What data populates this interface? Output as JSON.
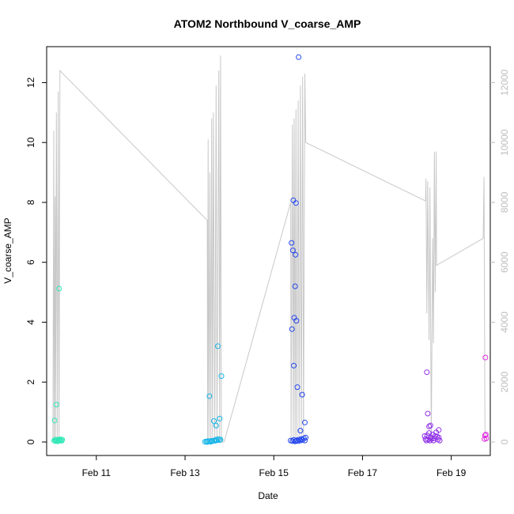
{
  "chart_data": {
    "type": "scatter",
    "title": "ATOM2 Northbound V_coarse_AMP",
    "xlabel": "Date",
    "ylabel": "V_coarse_AMP",
    "x_axis": {
      "range_days": [
        9.88,
        19.88
      ],
      "ticks": [
        {
          "day": 11,
          "label": "Feb 11"
        },
        {
          "day": 13,
          "label": "Feb 13"
        },
        {
          "day": 15,
          "label": "Feb 15"
        },
        {
          "day": 17,
          "label": "Feb 17"
        },
        {
          "day": 19,
          "label": "Feb 19"
        }
      ]
    },
    "y_axis_left": {
      "range": [
        -0.45,
        13.2
      ],
      "ticks": [
        0,
        2,
        4,
        6,
        8,
        10,
        12
      ]
    },
    "y_axis_right": {
      "range": [
        -450,
        13200
      ],
      "ticks": [
        0,
        2000,
        4000,
        6000,
        8000,
        10000,
        12000
      ],
      "color": "#bdbdbd"
    },
    "line_color": "#c8c8c8",
    "series": [
      {
        "color": "#2ee8b6",
        "points": [
          [
            10.05,
            0.05
          ],
          [
            10.07,
            0.03
          ],
          [
            10.08,
            0.08
          ],
          [
            10.1,
            0.04
          ],
          [
            10.12,
            0.06
          ],
          [
            10.13,
            0.02
          ],
          [
            10.15,
            0.07
          ],
          [
            10.17,
            0.05
          ],
          [
            10.18,
            0.09
          ],
          [
            10.2,
            0.06
          ],
          [
            10.22,
            0.04
          ],
          [
            10.23,
            0.08
          ],
          [
            10.06,
            0.72
          ],
          [
            10.1,
            1.25
          ],
          [
            10.16,
            5.12
          ]
        ]
      },
      {
        "color": "#17b6e8",
        "points": [
          [
            13.45,
            0.01
          ],
          [
            13.48,
            0.02
          ],
          [
            13.5,
            0.0
          ],
          [
            13.52,
            0.03
          ],
          [
            13.55,
            0.02
          ],
          [
            13.58,
            0.01
          ],
          [
            13.6,
            0.04
          ],
          [
            13.62,
            0.03
          ],
          [
            13.65,
            0.05
          ],
          [
            13.68,
            0.04
          ],
          [
            13.7,
            0.08
          ],
          [
            13.72,
            0.06
          ],
          [
            13.75,
            0.1
          ],
          [
            13.78,
            0.06
          ],
          [
            13.8,
            0.08
          ],
          [
            13.55,
            1.53
          ],
          [
            13.65,
            0.7
          ],
          [
            13.7,
            0.55
          ],
          [
            13.74,
            3.2
          ],
          [
            13.78,
            0.78
          ],
          [
            13.82,
            2.2
          ]
        ]
      },
      {
        "color": "#2446ee",
        "points": [
          [
            15.38,
            0.05
          ],
          [
            15.42,
            0.03
          ],
          [
            15.45,
            0.07
          ],
          [
            15.48,
            0.02
          ],
          [
            15.5,
            0.04
          ],
          [
            15.52,
            0.06
          ],
          [
            15.55,
            0.03
          ],
          [
            15.57,
            0.08
          ],
          [
            15.6,
            0.05
          ],
          [
            15.62,
            0.1
          ],
          [
            15.65,
            0.07
          ],
          [
            15.68,
            0.12
          ],
          [
            15.7,
            0.05
          ],
          [
            15.72,
            0.15
          ],
          [
            15.4,
            6.65
          ],
          [
            15.41,
            3.77
          ],
          [
            15.43,
            6.4
          ],
          [
            15.44,
            8.07
          ],
          [
            15.45,
            2.55
          ],
          [
            15.46,
            4.15
          ],
          [
            15.48,
            5.2
          ],
          [
            15.49,
            6.25
          ],
          [
            15.5,
            7.98
          ],
          [
            15.51,
            4.05
          ],
          [
            15.53,
            1.83
          ],
          [
            15.56,
            12.85
          ],
          [
            15.6,
            0.38
          ],
          [
            15.64,
            1.58
          ],
          [
            15.7,
            0.65
          ]
        ]
      },
      {
        "color": "#8e2ee8",
        "points": [
          [
            18.4,
            0.2
          ],
          [
            18.42,
            0.1
          ],
          [
            18.44,
            0.05
          ],
          [
            18.46,
            0.22
          ],
          [
            18.48,
            0.08
          ],
          [
            18.5,
            0.3
          ],
          [
            18.52,
            0.05
          ],
          [
            18.54,
            0.15
          ],
          [
            18.56,
            0.1
          ],
          [
            18.58,
            0.25
          ],
          [
            18.6,
            0.05
          ],
          [
            18.62,
            0.12
          ],
          [
            18.64,
            0.2
          ],
          [
            18.66,
            0.32
          ],
          [
            18.68,
            0.18
          ],
          [
            18.7,
            0.08
          ],
          [
            18.72,
            0.15
          ],
          [
            18.74,
            0.05
          ],
          [
            18.45,
            2.33
          ],
          [
            18.47,
            0.95
          ],
          [
            18.5,
            0.52
          ],
          [
            18.53,
            0.55
          ],
          [
            18.72,
            0.4
          ]
        ]
      },
      {
        "color": "#e02ee0",
        "points": [
          [
            19.75,
            0.1
          ],
          [
            19.76,
            0.22
          ],
          [
            19.77,
            2.82
          ],
          [
            19.78,
            0.25
          ],
          [
            19.79,
            0.12
          ]
        ]
      }
    ],
    "right_axis_line": [
      [
        10.02,
        0
      ],
      [
        10.04,
        10400
      ],
      [
        10.05,
        0
      ],
      [
        10.07,
        8200
      ],
      [
        10.08,
        0
      ],
      [
        10.1,
        11000
      ],
      [
        10.12,
        0
      ],
      [
        10.14,
        11700
      ],
      [
        10.16,
        0
      ],
      [
        10.18,
        12400
      ],
      [
        13.5,
        7400
      ],
      [
        13.51,
        0
      ],
      [
        13.52,
        10100
      ],
      [
        13.54,
        0
      ],
      [
        13.56,
        9000
      ],
      [
        13.58,
        0
      ],
      [
        13.6,
        10800
      ],
      [
        13.62,
        0
      ],
      [
        13.64,
        11000
      ],
      [
        13.67,
        0
      ],
      [
        13.7,
        11900
      ],
      [
        13.72,
        0
      ],
      [
        13.76,
        12400
      ],
      [
        13.78,
        0
      ],
      [
        13.8,
        12900
      ],
      [
        13.82,
        0
      ],
      [
        13.88,
        0
      ],
      [
        15.38,
        8000
      ],
      [
        15.39,
        0
      ],
      [
        15.42,
        10600
      ],
      [
        15.44,
        0
      ],
      [
        15.46,
        10800
      ],
      [
        15.48,
        0
      ],
      [
        15.5,
        11100
      ],
      [
        15.52,
        0
      ],
      [
        15.55,
        11400
      ],
      [
        15.57,
        0
      ],
      [
        15.6,
        11900
      ],
      [
        15.62,
        0
      ],
      [
        15.65,
        12200
      ],
      [
        15.67,
        0
      ],
      [
        15.7,
        12300
      ],
      [
        15.72,
        10000
      ],
      [
        18.42,
        8050
      ],
      [
        18.43,
        8800
      ],
      [
        18.45,
        4300
      ],
      [
        18.47,
        8700
      ],
      [
        18.5,
        3400
      ],
      [
        18.52,
        8500
      ],
      [
        18.55,
        0
      ],
      [
        18.58,
        6800
      ],
      [
        18.6,
        3300
      ],
      [
        18.62,
        9700
      ],
      [
        18.64,
        5000
      ],
      [
        18.66,
        9700
      ],
      [
        18.67,
        5900
      ],
      [
        19.72,
        6800
      ],
      [
        19.74,
        8850
      ],
      [
        19.76,
        0
      ]
    ]
  }
}
